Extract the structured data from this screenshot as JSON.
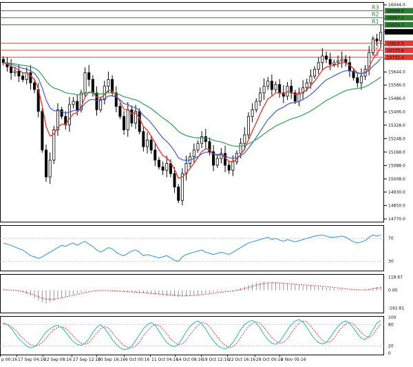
{
  "chart_data": [
    {
      "type": "candlestick",
      "panel": "price",
      "y_ticks": [
        "16044.0",
        "15964.0",
        "15884.0",
        "15804.0",
        "15724.0",
        "15644.0",
        "15566.0",
        "15486.0",
        "15406.0",
        "15328.0",
        "15248.0",
        "15168.0",
        "15088.0",
        "15008.0",
        "14930.0",
        "14850.0",
        "14770.0"
      ],
      "ylim": [
        14770.0,
        16044.0
      ],
      "levels": [
        {
          "label": "R3",
          "value_label": "16008.6",
          "value": 16008.6,
          "color": "#2e7d32"
        },
        {
          "label": "R2",
          "value_label": "15967.2",
          "value": 15967.2,
          "color": "#2e7d32"
        },
        {
          "label": "R1",
          "value_label": "15925.7",
          "value": 15925.7,
          "color": "#2e7d32"
        },
        {
          "label": "",
          "value_label": "15883.5",
          "value": 15883.5,
          "color": "#000000"
        },
        {
          "label": "S1",
          "value_label": "15815.3",
          "value": 15815.3,
          "color": "#e53935"
        },
        {
          "label": "S2",
          "value_label": "15773.8",
          "value": 15773.8,
          "color": "#e53935"
        },
        {
          "label": "S3",
          "value_label": "15732.4",
          "value": 15732.4,
          "color": "#e53935"
        }
      ],
      "closes": [
        15700,
        15675,
        15640,
        15650,
        15620,
        15600,
        15640,
        15580,
        15540,
        15410,
        15180,
        15020,
        15120,
        15300,
        15420,
        15380,
        15330,
        15450,
        15470,
        15420,
        15520,
        15640,
        15600,
        15520,
        15420,
        15480,
        15560,
        15600,
        15520,
        15440,
        15380,
        15300,
        15420,
        15340,
        15410,
        15290,
        15200,
        15240,
        15180,
        15120,
        15080,
        15060,
        15100,
        15040,
        14960,
        14880,
        15040,
        15100,
        15140,
        15180,
        15220,
        15260,
        15230,
        15170,
        15090,
        15130,
        15160,
        15090,
        15060,
        15110,
        15160,
        15220,
        15270,
        15380,
        15420,
        15470,
        15520,
        15560,
        15590,
        15540,
        15570,
        15520,
        15500,
        15560,
        15520,
        15470,
        15520,
        15550,
        15580,
        15620,
        15660,
        15700,
        15740,
        15720,
        15690,
        15700,
        15710,
        15720,
        15700,
        15650,
        15610,
        15580,
        15620,
        15660,
        15760,
        15840,
        15830,
        15880
      ]
    },
    {
      "type": "line",
      "panel": "oscillator-1",
      "y_ticks": [
        "70",
        "30"
      ],
      "ylim": [
        14,
        93
      ],
      "values": [
        62,
        60,
        58,
        55,
        52,
        50,
        45,
        40,
        38,
        35,
        38,
        42,
        46,
        50,
        54,
        58,
        56,
        60,
        62,
        58,
        62,
        65,
        60,
        56,
        50,
        46,
        50,
        54,
        52,
        46,
        42,
        40,
        44,
        48,
        50,
        46,
        40,
        42,
        40,
        38,
        36,
        38,
        40,
        36,
        32,
        30,
        38,
        42,
        44,
        46,
        48,
        50,
        46,
        44,
        42,
        44,
        46,
        44,
        42,
        46,
        50,
        54,
        58,
        62,
        64,
        66,
        68,
        70,
        72,
        68,
        70,
        67,
        65,
        68,
        66,
        64,
        66,
        68,
        70,
        72,
        74,
        75,
        76,
        74,
        72,
        72,
        73,
        74,
        72,
        68,
        64,
        62,
        64,
        66,
        72,
        76,
        74,
        76
      ]
    },
    {
      "type": "bar",
      "panel": "oscillator-2",
      "y_ticks": [
        "118.67",
        "0.00",
        "-162.81"
      ],
      "ylim": [
        -190,
        135
      ],
      "values": [
        10,
        8,
        5,
        0,
        -10,
        -20,
        -35,
        -50,
        -70,
        -90,
        -110,
        -120,
        -110,
        -95,
        -80,
        -65,
        -55,
        -45,
        -35,
        -25,
        -18,
        -10,
        -5,
        0,
        2,
        0,
        -3,
        -5,
        -8,
        -10,
        -12,
        -15,
        -18,
        -20,
        -22,
        -25,
        -28,
        -32,
        -36,
        -40,
        -44,
        -48,
        -50,
        -52,
        -55,
        -60,
        -58,
        -55,
        -50,
        -45,
        -40,
        -35,
        -30,
        -25,
        -20,
        -15,
        -10,
        -8,
        -5,
        0,
        10,
        20,
        35,
        50,
        60,
        70,
        75,
        80,
        78,
        75,
        72,
        68,
        65,
        60,
        55,
        50,
        48,
        45,
        42,
        40,
        38,
        35,
        30,
        25,
        20,
        15,
        10,
        8,
        5,
        2,
        0,
        -2,
        0,
        5,
        15,
        25,
        30,
        35
      ],
      "signal": [
        5,
        4,
        2,
        0,
        -5,
        -12,
        -22,
        -32,
        -45,
        -58,
        -70,
        -80,
        -82,
        -80,
        -75,
        -68,
        -60,
        -52,
        -44,
        -36,
        -28,
        -20,
        -14,
        -8,
        -4,
        -2,
        -2,
        -3,
        -5,
        -7,
        -9,
        -11,
        -13,
        -15,
        -17,
        -19,
        -22,
        -25,
        -28,
        -31,
        -34,
        -37,
        -40,
        -42,
        -45,
        -48,
        -50,
        -50,
        -49,
        -47,
        -44,
        -40,
        -36,
        -32,
        -27,
        -22,
        -18,
        -14,
        -10,
        -5,
        0,
        8,
        16,
        26,
        36,
        46,
        54,
        62,
        66,
        68,
        68,
        67,
        65,
        62,
        59,
        56,
        53,
        50,
        47,
        44,
        42,
        40,
        37,
        34,
        30,
        26,
        22,
        18,
        14,
        10,
        7,
        4,
        3,
        4,
        8,
        14,
        20,
        25
      ]
    },
    {
      "type": "line",
      "panel": "oscillator-3",
      "y_ticks": [
        "100",
        "80",
        "20",
        "0"
      ],
      "ylim": [
        0,
        100
      ],
      "main": [
        85,
        80,
        70,
        55,
        40,
        30,
        20,
        15,
        18,
        28,
        45,
        60,
        68,
        75,
        78,
        72,
        60,
        45,
        32,
        25,
        22,
        28,
        40,
        58,
        72,
        80,
        70,
        55,
        38,
        25,
        15,
        10,
        12,
        20,
        35,
        52,
        68,
        80,
        86,
        78,
        62,
        45,
        30,
        22,
        18,
        25,
        42,
        60,
        75,
        85,
        90,
        82,
        68,
        50,
        35,
        22,
        15,
        12,
        18,
        30,
        48,
        66,
        80,
        88,
        92,
        85,
        70,
        52,
        38,
        28,
        25,
        32,
        48,
        65,
        80,
        90,
        94,
        88,
        72,
        55,
        40,
        30,
        26,
        30,
        44,
        60,
        75,
        86,
        90,
        84,
        70,
        54,
        42,
        38,
        48,
        66,
        84,
        92
      ],
      "signal": [
        82,
        80,
        75,
        66,
        54,
        42,
        32,
        24,
        20,
        22,
        30,
        42,
        56,
        66,
        72,
        74,
        70,
        60,
        48,
        36,
        28,
        25,
        30,
        42,
        56,
        68,
        74,
        70,
        58,
        44,
        32,
        22,
        16,
        15,
        20,
        32,
        48,
        62,
        74,
        80,
        78,
        68,
        54,
        40,
        30,
        24,
        26,
        36,
        52,
        66,
        78,
        86,
        84,
        74,
        60,
        45,
        32,
        22,
        16,
        18,
        28,
        44,
        60,
        74,
        84,
        88,
        84,
        72,
        58,
        44,
        34,
        28,
        30,
        40,
        56,
        72,
        84,
        90,
        88,
        76,
        62,
        48,
        36,
        30,
        32,
        42,
        58,
        72,
        82,
        86,
        82,
        70,
        58,
        48,
        44,
        52,
        68,
        82
      ],
      "x_ticks": [
        "p 00:16",
        "17 Sep 04:16",
        "22 Sep 08:16",
        "27 Sep 12:16",
        "30 Sep 16:16",
        "6 Oct 00:16",
        "11 Oct 04:16",
        "14 Oct 08:16",
        "19 Oct 12:16",
        "22 Oct 16:16",
        "28 Oct 00:16",
        "2 Nov 05:16"
      ]
    }
  ],
  "colors": {
    "up": "#000000",
    "down": "#000000",
    "ma_fast": "#e53935",
    "ma_mid": "#3a5bd6",
    "ma_slow": "#2aa24a",
    "osc1": "#2c8fe0",
    "osc2_signal": "#e53935",
    "osc2_bars": "#7a7a7a",
    "osc3_main": "#26b8b8",
    "osc3_signal": "#e53935"
  }
}
